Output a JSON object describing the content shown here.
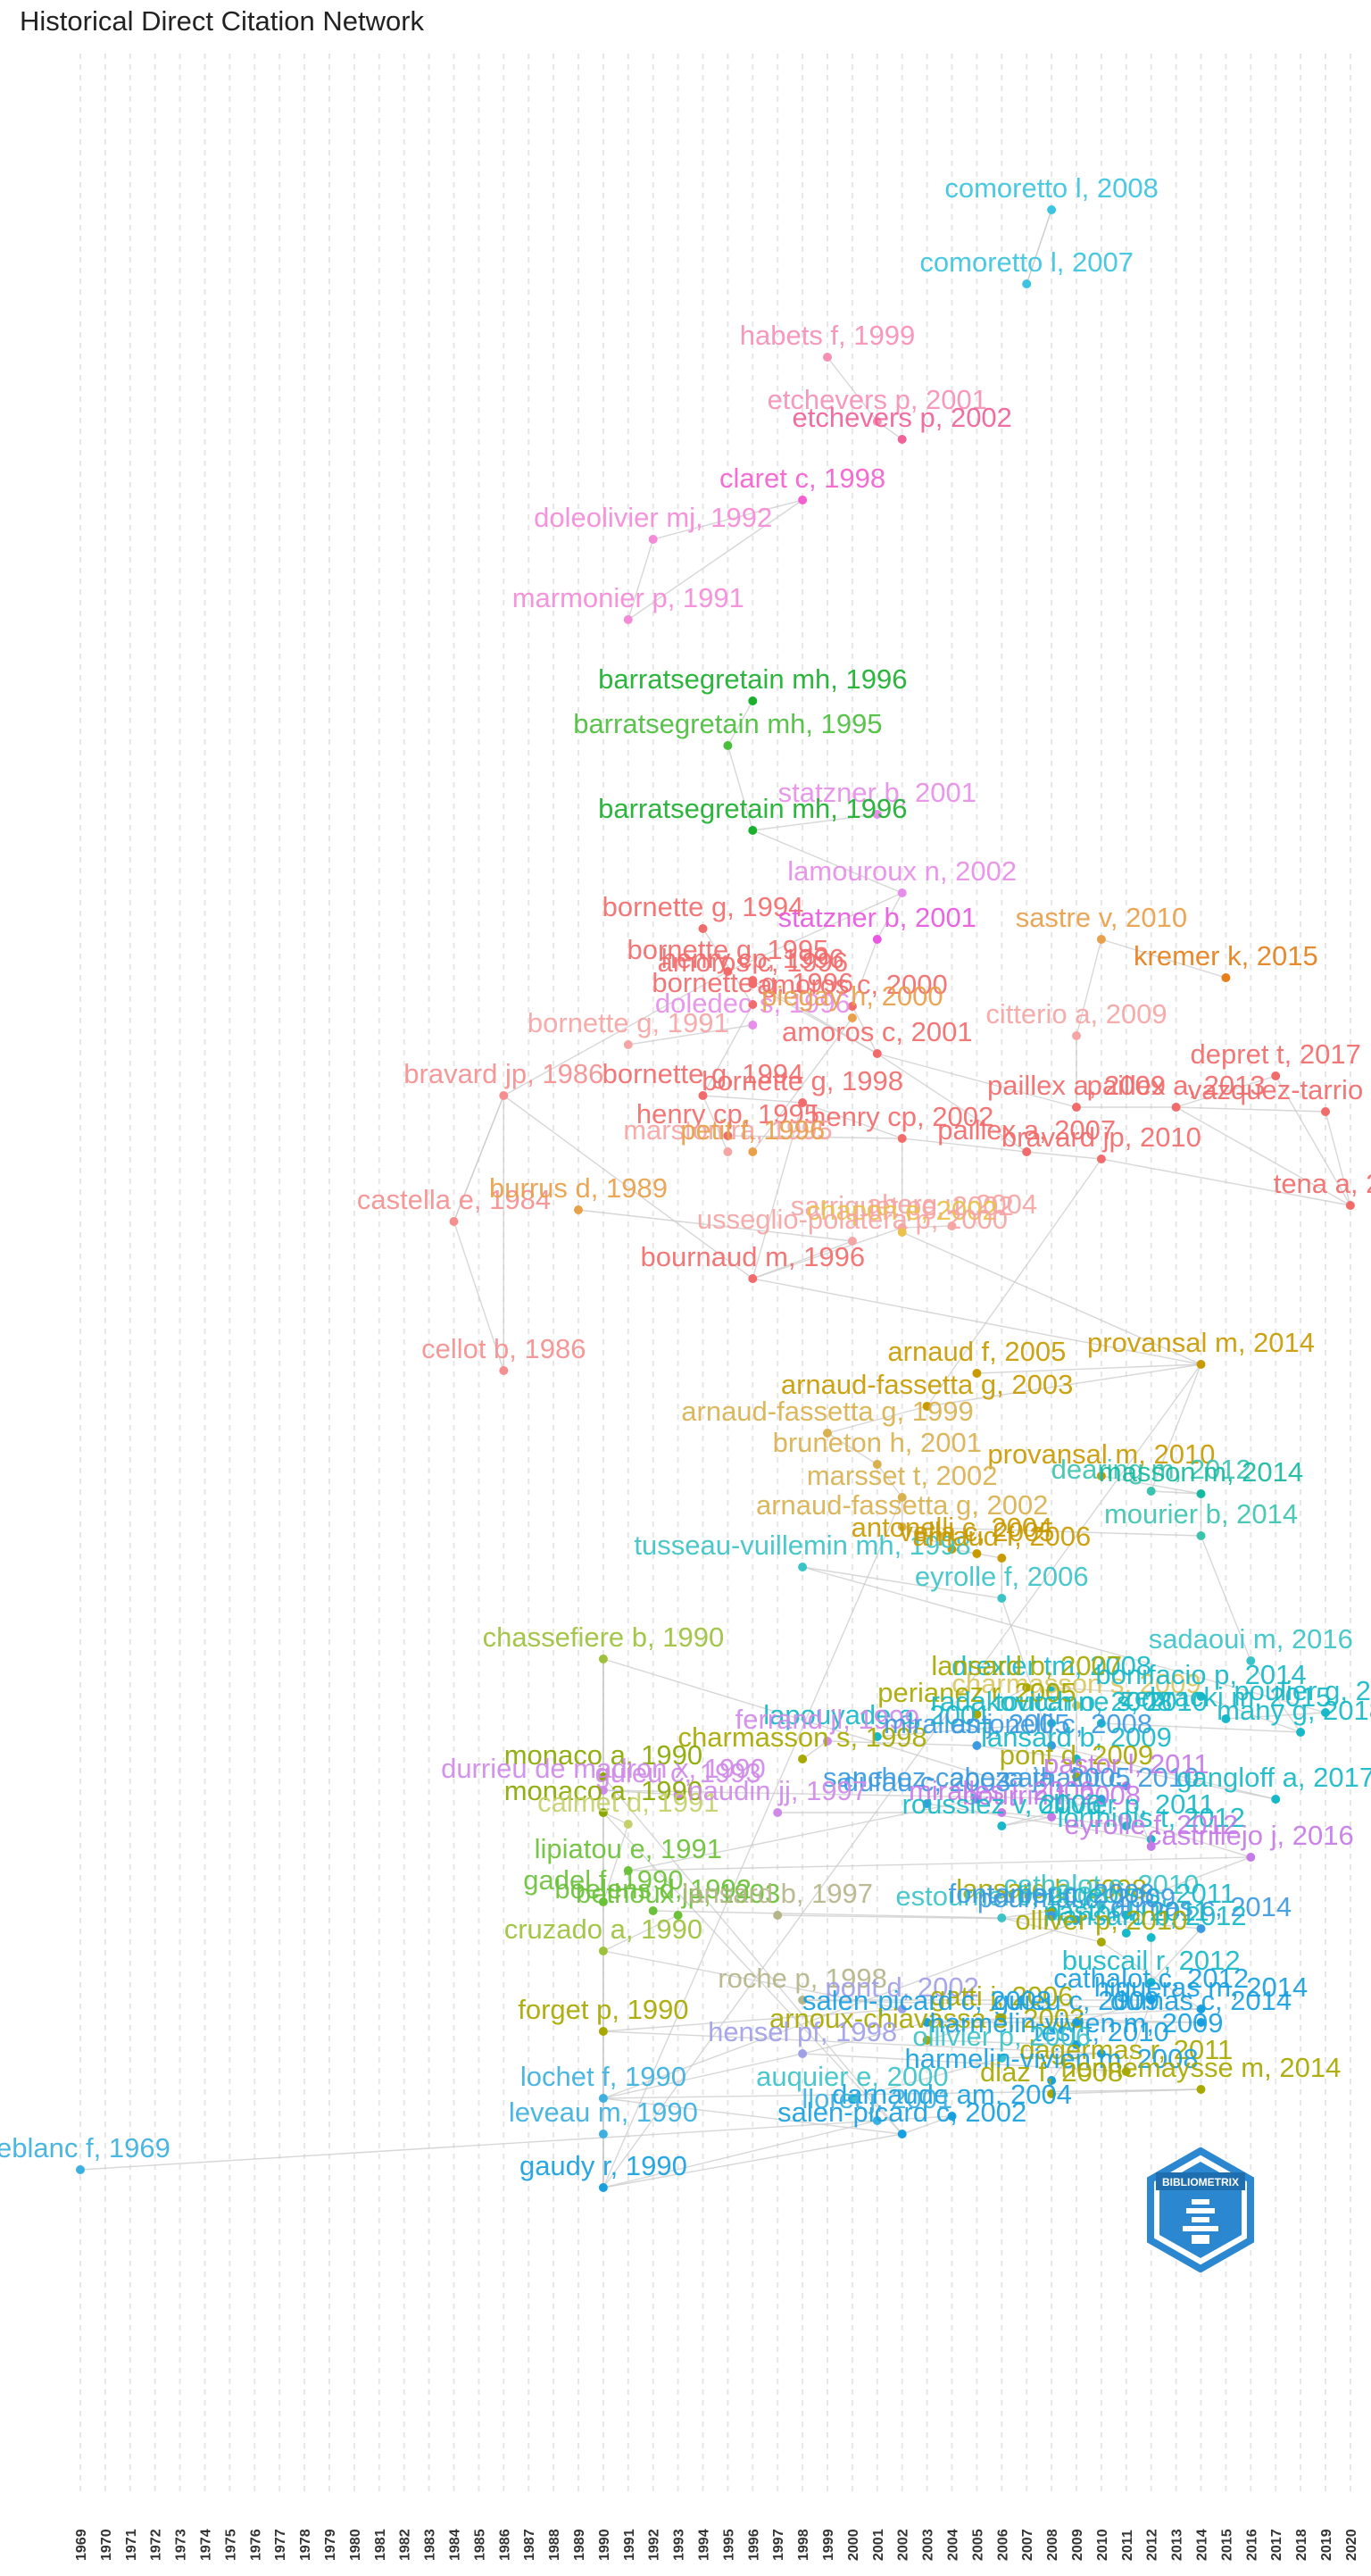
{
  "title": "Historical Direct Citation Network",
  "logo_text": "BIBLIOMETRIX",
  "axis": {
    "years": [
      "1969",
      "1970",
      "1971",
      "1972",
      "1973",
      "1974",
      "1975",
      "1976",
      "1977",
      "1978",
      "1979",
      "1980",
      "1981",
      "1982",
      "1983",
      "1984",
      "1985",
      "1986",
      "1987",
      "1988",
      "1989",
      "1990",
      "1991",
      "1992",
      "1993",
      "1994",
      "1995",
      "1996",
      "1997",
      "1998",
      "1999",
      "2000",
      "2001",
      "2002",
      "2003",
      "2004",
      "2005",
      "2006",
      "2007",
      "2008",
      "2009",
      "2010",
      "2011",
      "2012",
      "2013",
      "2014",
      "2015",
      "2016",
      "2017",
      "2018",
      "2019",
      "2020"
    ]
  },
  "colors": {
    "grid": "#e6e6e6",
    "edge": "#c9c9c9",
    "logo": "#2c87d1"
  },
  "nodes": [
    {
      "label": "comoretto l, 2008",
      "year": 2008,
      "color": "#3cc3e0"
    },
    {
      "label": "comoretto l, 2007",
      "year": 2007,
      "color": "#3cc3e0"
    },
    {
      "label": "habets f, 1999",
      "year": 1999,
      "color": "#f78fb5"
    },
    {
      "label": "etchevers p, 2001",
      "year": 2001,
      "color": "#f590b5"
    },
    {
      "label": "etchevers p, 2002",
      "year": 2002,
      "color": "#f0629a"
    },
    {
      "label": "claret c, 1998",
      "year": 1998,
      "color": "#f35fd0"
    },
    {
      "label": "doleolivier mj, 1992",
      "year": 1992,
      "color": "#f48ad8"
    },
    {
      "label": "marmonier p, 1991",
      "year": 1991,
      "color": "#f48ad8"
    },
    {
      "label": "barratsegretain mh, 1996",
      "year": 1996,
      "color": "#1ab02e"
    },
    {
      "label": "barratsegretain mh, 1995",
      "year": 1995,
      "color": "#4cbe3d"
    },
    {
      "label": "statzner b, 2001",
      "year": 2001,
      "color": "#e68ee8"
    },
    {
      "label": "barratsegretain mh, 1996",
      "year": 1996,
      "color": "#1ab02e"
    },
    {
      "label": "lamouroux n, 2002",
      "year": 2002,
      "color": "#e68ee8"
    },
    {
      "label": "bornette g, 1994",
      "year": 1994,
      "color": "#f26b6b"
    },
    {
      "label": "statzner b, 2001",
      "year": 2001,
      "color": "#e858e0"
    },
    {
      "label": "sastre v, 2010",
      "year": 2010,
      "color": "#e8a04a"
    },
    {
      "label": "kremer k, 2015",
      "year": 2015,
      "color": "#e5801b"
    },
    {
      "label": "bornette g, 1995",
      "year": 1995,
      "color": "#f26b6b"
    },
    {
      "label": "henry cp, 1996",
      "year": 1996,
      "color": "#f26b6b"
    },
    {
      "label": "amoros c, 1996",
      "year": 1996,
      "color": "#f26b6b"
    },
    {
      "label": "bornette g, 1996",
      "year": 1996,
      "color": "#f26b6b"
    },
    {
      "label": "amoros c, 2000",
      "year": 2000,
      "color": "#f26b6b"
    },
    {
      "label": "doledec s, 1996",
      "year": 1996,
      "color": "#e68ee8"
    },
    {
      "label": "piegay h, 2000",
      "year": 2000,
      "color": "#e8a04a"
    },
    {
      "label": "citterio a, 2009",
      "year": 2009,
      "color": "#f6a5a5"
    },
    {
      "label": "bornette g, 1991",
      "year": 1991,
      "color": "#f6a5a5"
    },
    {
      "label": "amoros c, 2001",
      "year": 2001,
      "color": "#f26b6b"
    },
    {
      "label": "depret t, 2017",
      "year": 2017,
      "color": "#f26b6b"
    },
    {
      "label": "bravard jp, 1986",
      "year": 1986,
      "color": "#f58f8f"
    },
    {
      "label": "bornette g, 1994",
      "year": 1994,
      "color": "#f26b6b"
    },
    {
      "label": "bornette g, 1998",
      "year": 1998,
      "color": "#f26b6b"
    },
    {
      "label": "paillex a, 2009",
      "year": 2009,
      "color": "#f26b6b"
    },
    {
      "label": "paillex a, 2013",
      "year": 2013,
      "color": "#f26b6b"
    },
    {
      "label": "vazquez-tarrio d, 2019",
      "year": 2019,
      "color": "#f26b6b"
    },
    {
      "label": "henry cp, 2002",
      "year": 2002,
      "color": "#f26b6b"
    },
    {
      "label": "henry cp, 1995",
      "year": 1995,
      "color": "#f26b6b"
    },
    {
      "label": "paillex a, 2007",
      "year": 2007,
      "color": "#f26b6b"
    },
    {
      "label": "marston ra, 1995",
      "year": 1995,
      "color": "#f6a5a5"
    },
    {
      "label": "petit f, 1996",
      "year": 1996,
      "color": "#e8a04a"
    },
    {
      "label": "bravard jp, 2010",
      "year": 2010,
      "color": "#f26b6b"
    },
    {
      "label": "tena a, 2020",
      "year": 2020,
      "color": "#f26b6b"
    },
    {
      "label": "castella e, 1984",
      "year": 1984,
      "color": "#f58f8f"
    },
    {
      "label": "burrus d, 1989",
      "year": 1989,
      "color": "#e8a04a"
    },
    {
      "label": "sarriquet pe, 2002",
      "year": 2002,
      "color": "#f6a5a5"
    },
    {
      "label": "aberg u, 2004",
      "year": 2004,
      "color": "#f6a5a5"
    },
    {
      "label": "chapon e, 2002",
      "year": 2002,
      "color": "#e8c24a"
    },
    {
      "label": "usseglio-polatera p, 2000",
      "year": 2000,
      "color": "#f6a5a5"
    },
    {
      "label": "bournaud m, 1996",
      "year": 1996,
      "color": "#f26b6b"
    },
    {
      "label": "cellot b, 1986",
      "year": 1986,
      "color": "#f58f8f"
    },
    {
      "label": "arnaud f, 2005",
      "year": 2005,
      "color": "#c99a00"
    },
    {
      "label": "provansal m, 2014",
      "year": 2014,
      "color": "#c99a00"
    },
    {
      "label": "arnaud-fassetta g, 2003",
      "year": 2003,
      "color": "#c99a00"
    },
    {
      "label": "arnaud-fassetta g, 1999",
      "year": 1999,
      "color": "#d9b150"
    },
    {
      "label": "bruneton h, 2001",
      "year": 2001,
      "color": "#d9b150"
    },
    {
      "label": "provansal m, 2010",
      "year": 2010,
      "color": "#c99a00"
    },
    {
      "label": "dearing m, 2012",
      "year": 2012,
      "color": "#3cc3b0"
    },
    {
      "label": "masson m, 2014",
      "year": 2014,
      "color": "#17b8a0"
    },
    {
      "label": "marsset t, 2002",
      "year": 2002,
      "color": "#d9b150"
    },
    {
      "label": "arnaud-fassetta g, 2002",
      "year": 2002,
      "color": "#d9b150"
    },
    {
      "label": "mourier b, 2014",
      "year": 2014,
      "color": "#3cc3b0"
    },
    {
      "label": "tusseau-vuillemin mh, 1998",
      "year": 1998,
      "color": "#3cc3c8"
    },
    {
      "label": "antonelli c, 2004",
      "year": 2004,
      "color": "#c99a00"
    },
    {
      "label": "vella c, 2005",
      "year": 2005,
      "color": "#c99a00"
    },
    {
      "label": "arnaud f, 2006",
      "year": 2006,
      "color": "#c99a00"
    },
    {
      "label": "eyrolle f, 2006",
      "year": 2006,
      "color": "#3cc3c8"
    },
    {
      "label": "chassefiere b, 1990",
      "year": 1990,
      "color": "#9cc13a"
    },
    {
      "label": "sadaoui m, 2016",
      "year": 2016,
      "color": "#3cc3c8"
    },
    {
      "label": "drexler tm, 2008",
      "year": 2008,
      "color": "#17b8c8"
    },
    {
      "label": "lansard b, 2007",
      "year": 2007,
      "color": "#a8a800"
    },
    {
      "label": "charmasson s, 2009",
      "year": 2009,
      "color": "#d9c760"
    },
    {
      "label": "zebracki m, 2015",
      "year": 2015,
      "color": "#17b8c8"
    },
    {
      "label": "bonifacio p, 2014",
      "year": 2014,
      "color": "#17b8c8"
    },
    {
      "label": "poulier g, 2019",
      "year": 2019,
      "color": "#17b8c8"
    },
    {
      "label": "toucanne s, 2010",
      "year": 2010,
      "color": "#17b8c8"
    },
    {
      "label": "lapouyade a, 2001",
      "year": 2001,
      "color": "#17b8c8"
    },
    {
      "label": "perianez r, 2005",
      "year": 2005,
      "color": "#a8a800"
    },
    {
      "label": "radakovitch o, 2008",
      "year": 2008,
      "color": "#17b8c8"
    },
    {
      "label": "many g, 2018",
      "year": 2018,
      "color": "#17b8c8"
    },
    {
      "label": "charmasson s, 1998",
      "year": 1998,
      "color": "#a8a800"
    },
    {
      "label": "ferrand jl, 1999",
      "year": 1999,
      "color": "#cf8ae8"
    },
    {
      "label": "antonelli c, 2008",
      "year": 2008,
      "color": "#3c9ae0"
    },
    {
      "label": "miralles j, 2005",
      "year": 2005,
      "color": "#3c9ae0"
    },
    {
      "label": "lansard b, 2009",
      "year": 2009,
      "color": "#17b8c8"
    },
    {
      "label": "pont d, 2009",
      "year": 2009,
      "color": "#a8a800"
    },
    {
      "label": "monaco a, 1990",
      "year": 1990,
      "color": "#8aa800"
    },
    {
      "label": "guieu c, 1993",
      "year": 1993,
      "color": "#cf8ae8"
    },
    {
      "label": "durrieu de madron x, 1990",
      "year": 1990,
      "color": "#cf8ae8"
    },
    {
      "label": "dufau c, 2003",
      "year": 2003,
      "color": "#3c9ae0"
    },
    {
      "label": "cathalot c, 2010",
      "year": 2010,
      "color": "#3c9ae0"
    },
    {
      "label": "pastor l, 2011",
      "year": 2011,
      "color": "#c57ae8"
    },
    {
      "label": "sanchez-cabeza ja, 2005",
      "year": 2005,
      "color": "#3c9ae0"
    },
    {
      "label": "gangloff a, 2017",
      "year": 2017,
      "color": "#17b8c8"
    },
    {
      "label": "monaco a, 1990",
      "year": 1990,
      "color": "#8aa800"
    },
    {
      "label": "calmet d, 1991",
      "year": 1991,
      "color": "#c5d06a"
    },
    {
      "label": "naudin jj, 1997",
      "year": 1997,
      "color": "#cf8ae8"
    },
    {
      "label": "miralles j, 2006",
      "year": 2006,
      "color": "#c57ae8"
    },
    {
      "label": "bourrin f, 2008",
      "year": 2008,
      "color": "#c57ae8"
    },
    {
      "label": "ollivier p, 2011",
      "year": 2011,
      "color": "#17b8c8"
    },
    {
      "label": "roussiez v, 2006",
      "year": 2006,
      "color": "#17b8c8"
    },
    {
      "label": "lorthiois t, 2012",
      "year": 2012,
      "color": "#17b8c8"
    },
    {
      "label": "eyrolle f, 2012",
      "year": 2012,
      "color": "#c57ae8"
    },
    {
      "label": "castrillejo j, 2016",
      "year": 2016,
      "color": "#c57ae8"
    },
    {
      "label": "lipiatou e, 1991",
      "year": 1991,
      "color": "#6bc13a"
    },
    {
      "label": "gadel f, 1990",
      "year": 1990,
      "color": "#6bc13a"
    },
    {
      "label": "boelens d, 1992",
      "year": 1992,
      "color": "#6bc13a"
    },
    {
      "label": "bethoux jp, 1993",
      "year": 1993,
      "color": "#6bc13a"
    },
    {
      "label": "lansard b, 1997",
      "year": 1997,
      "color": "#b5b58a"
    },
    {
      "label": "lansard b, 2008",
      "year": 2008,
      "color": "#a8a800"
    },
    {
      "label": "estournel c, 2006",
      "year": 2006,
      "color": "#3cc3c8"
    },
    {
      "label": "cathalot c, 2010",
      "year": 2010,
      "color": "#3cc3c8"
    },
    {
      "label": "pourmal c, 2009",
      "year": 2009,
      "color": "#3c9ae0"
    },
    {
      "label": "bourgeois s, 2011",
      "year": 2011,
      "color": "#17b8c8"
    },
    {
      "label": "pastor l, 2011",
      "year": 2011,
      "color": "#17b8c8"
    },
    {
      "label": "fontanier c, 2008",
      "year": 2008,
      "color": "#3c9ae0"
    },
    {
      "label": "dumas c, 2014",
      "year": 2014,
      "color": "#3c9ae0"
    },
    {
      "label": "lansard b, 2012",
      "year": 2012,
      "color": "#17b8c8"
    },
    {
      "label": "olliver p, 2010",
      "year": 2010,
      "color": "#a8a800"
    },
    {
      "label": "cruzado a, 1990",
      "year": 1990,
      "color": "#9cc13a"
    },
    {
      "label": "buscail r, 2012",
      "year": 2012,
      "color": "#17b8c8"
    },
    {
      "label": "higueras m, 2014",
      "year": 2014,
      "color": "#17a0e0"
    },
    {
      "label": "roche p, 1998",
      "year": 1998,
      "color": "#b5b58a"
    },
    {
      "label": "pont d, 2002",
      "year": 2002,
      "color": "#a0a0e8"
    },
    {
      "label": "gatti j, 2006",
      "year": 2006,
      "color": "#a8a800"
    },
    {
      "label": "guieu c, 2009",
      "year": 2009,
      "color": "#17a0e0"
    },
    {
      "label": "dumas c, 2014",
      "year": 2014,
      "color": "#17a0e0"
    },
    {
      "label": "forget p, 1990",
      "year": 1990,
      "color": "#a8a800"
    },
    {
      "label": "salen-picard c, 2003",
      "year": 2003,
      "color": "#17a0e0"
    },
    {
      "label": "cathalot c, 2012",
      "year": 2012,
      "color": "#17a0e0"
    },
    {
      "label": "arnoux-chiavassa s, 2003",
      "year": 2003,
      "color": "#a8a800"
    },
    {
      "label": "harmelin-vivien m, 2009",
      "year": 2009,
      "color": "#17a0e0"
    },
    {
      "label": "tesi t, 2010",
      "year": 2010,
      "color": "#17a0e0"
    },
    {
      "label": "dagermas r, 2011",
      "year": 2011,
      "color": "#a8a800"
    },
    {
      "label": "hensel pf, 1998",
      "year": 1998,
      "color": "#a0a0e8"
    },
    {
      "label": "harmelin-vivien m, 2008",
      "year": 2008,
      "color": "#17a0e0"
    },
    {
      "label": "ollivier p, 2006",
      "year": 2006,
      "color": "#3cc3c8"
    },
    {
      "label": "diaz f, 2008",
      "year": 2008,
      "color": "#a8a800"
    },
    {
      "label": "hennemaysse m, 2014",
      "year": 2014,
      "color": "#a8a800"
    },
    {
      "label": "lochet f, 1990",
      "year": 1990,
      "color": "#3cb0e0"
    },
    {
      "label": "auquier e, 2000",
      "year": 2000,
      "color": "#3cc3c8"
    },
    {
      "label": "darnaude am, 2004",
      "year": 2004,
      "color": "#17a0e0"
    },
    {
      "label": "salen-picard c, 2002",
      "year": 2002,
      "color": "#17a0e0"
    },
    {
      "label": "lloret j, 2001",
      "year": 2001,
      "color": "#3cb0e0"
    },
    {
      "label": "leblanc f, 1969",
      "year": 1969,
      "color": "#3cb0e0"
    },
    {
      "label": "gaudy r, 1990",
      "year": 1990,
      "color": "#17a0e0"
    },
    {
      "label": "leveau m, 1990",
      "year": 1990,
      "color": "#3cb0e0"
    }
  ]
}
